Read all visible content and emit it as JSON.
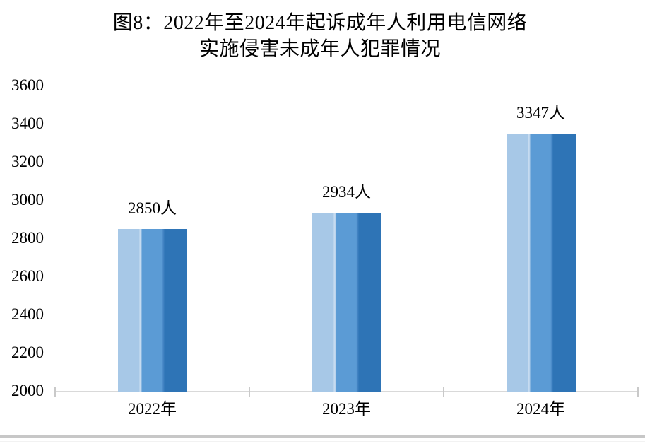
{
  "chart": {
    "title_line1": "图8：2022年至2024年起诉成年人利用电信网络",
    "title_line2": "实施侵害未成年人犯罪情况"
  },
  "chart_data": {
    "type": "bar",
    "title": "图8：2022年至2024年起诉成年人利用电信网络实施侵害未成年人犯罪情况",
    "categories": [
      "2022年",
      "2023年",
      "2024年"
    ],
    "values": [
      2850,
      2934,
      3347
    ],
    "data_labels": [
      "2850人",
      "2934人",
      "3347人"
    ],
    "xlabel": "",
    "ylabel": "",
    "ylim": [
      2000,
      3600
    ],
    "ytick_interval": 200,
    "yticks": [
      2000,
      2200,
      2400,
      2600,
      2800,
      3000,
      3200,
      3400,
      3600
    ],
    "grid": false,
    "legend_position": "none",
    "style": {
      "bar_stripe_light": "#A7C8E7",
      "bar_stripe_medium": "#5B9BD5",
      "bar_stripe_dark": "#2E74B6",
      "bar_stripe_separator": "#C6DBF0",
      "bar_stripe_blend": "#4A89C8",
      "axis_color": "#D9D9D9",
      "tick_color": "#C9C9C9",
      "text_color": "#000000",
      "background": "#FFFFFF"
    }
  }
}
